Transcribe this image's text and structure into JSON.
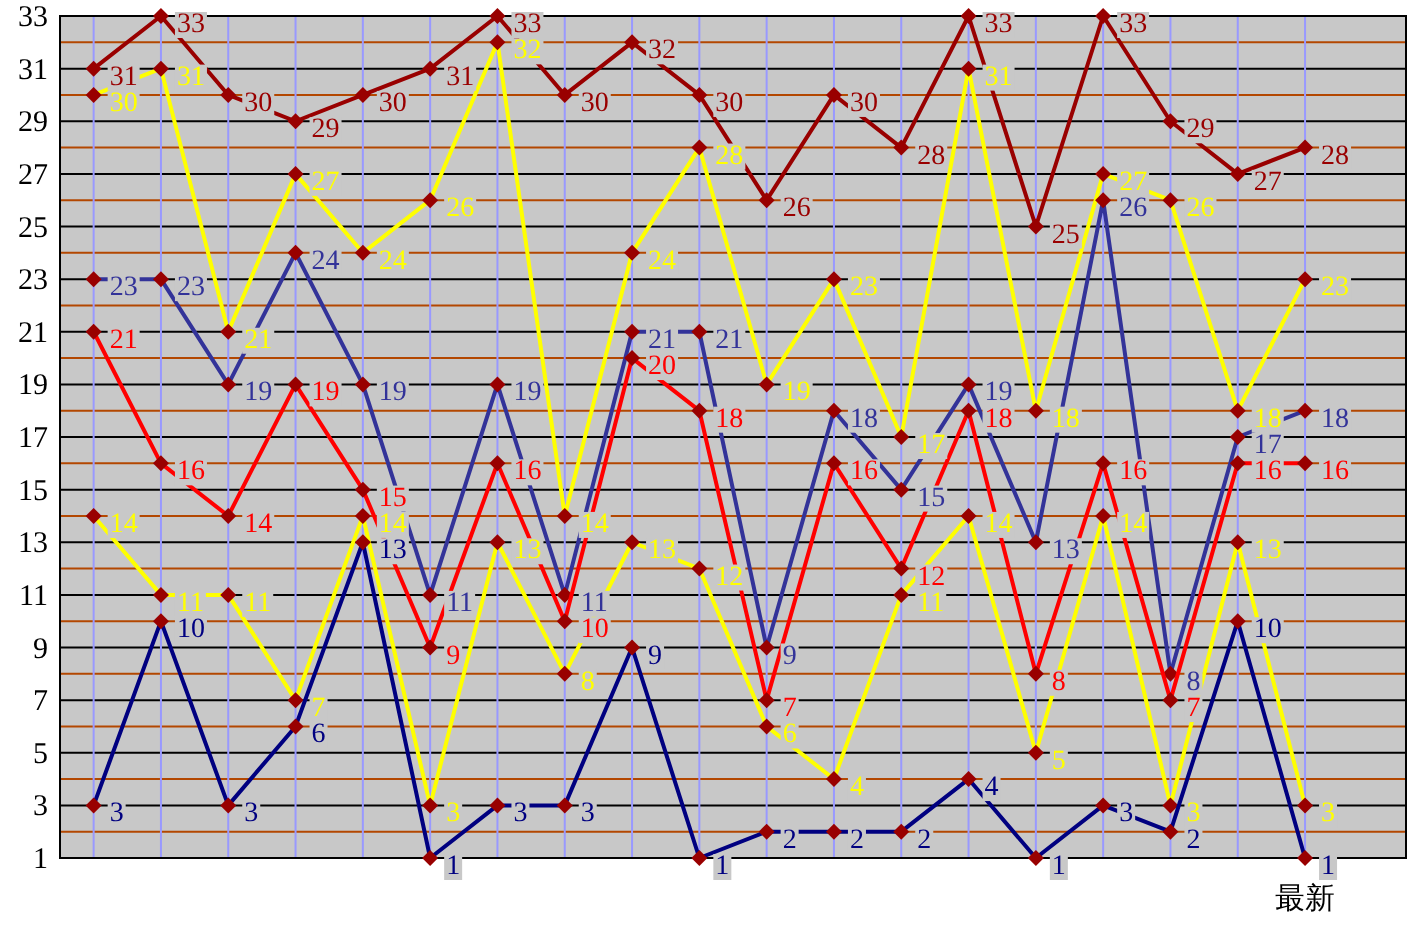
{
  "chart_data": {
    "type": "line",
    "categories": [
      null,
      null,
      null,
      null,
      null,
      null,
      null,
      null,
      null,
      null,
      null,
      null,
      null,
      null,
      null,
      null,
      null,
      null,
      "最新"
    ],
    "ylim": [
      1,
      33
    ],
    "yticks": [
      1,
      {
        "value": 2,
        "label": null
      },
      3,
      {
        "value": 4,
        "label": null
      },
      5,
      {
        "value": 6,
        "label": null
      },
      7,
      {
        "value": 8,
        "label": null
      },
      9,
      {
        "value": 10,
        "label": null
      },
      11,
      {
        "value": 12,
        "label": null
      },
      13,
      {
        "value": 14,
        "label": null
      },
      15,
      {
        "value": 16,
        "label": null
      },
      17,
      {
        "value": 18,
        "label": null
      },
      19,
      {
        "value": 20,
        "label": null
      },
      21,
      {
        "value": 22,
        "label": null
      },
      23,
      {
        "value": 24,
        "label": null
      },
      25,
      {
        "value": 26,
        "label": null
      },
      27,
      {
        "value": 28,
        "label": null
      },
      29,
      {
        "value": 30,
        "label": null
      },
      31,
      {
        "value": 32,
        "label": null
      },
      33
    ],
    "grid": true,
    "marker": "diamond",
    "data_labels": true,
    "series": [
      {
        "color": "#990000",
        "values": [
          31,
          33,
          30,
          29,
          30,
          31,
          33,
          30,
          32,
          30,
          26,
          30,
          28,
          33,
          25,
          33,
          29,
          27,
          28
        ]
      },
      {
        "color": "#ffff00",
        "values": [
          30,
          31,
          21,
          27,
          24,
          26,
          32,
          14,
          24,
          28,
          19,
          23,
          17,
          31,
          18,
          27,
          26,
          18,
          23
        ]
      },
      {
        "color": "#333399",
        "values": [
          23,
          23,
          19,
          24,
          19,
          11,
          19,
          11,
          21,
          21,
          9,
          18,
          15,
          19,
          13,
          26,
          8,
          17,
          18
        ]
      },
      {
        "color": "#ff0000",
        "values": [
          21,
          16,
          14,
          19,
          15,
          9,
          16,
          10,
          20,
          18,
          7,
          16,
          12,
          18,
          8,
          16,
          7,
          16,
          16
        ]
      },
      {
        "color": "#ffff00",
        "values": [
          14,
          11,
          11,
          7,
          14,
          3,
          13,
          8,
          13,
          12,
          6,
          4,
          11,
          14,
          5,
          14,
          3,
          13,
          3
        ]
      },
      {
        "color": "#000080",
        "values": [
          3,
          10,
          3,
          6,
          13,
          1,
          3,
          3,
          9,
          1,
          2,
          2,
          2,
          4,
          1,
          3,
          2,
          10,
          1
        ]
      }
    ]
  }
}
